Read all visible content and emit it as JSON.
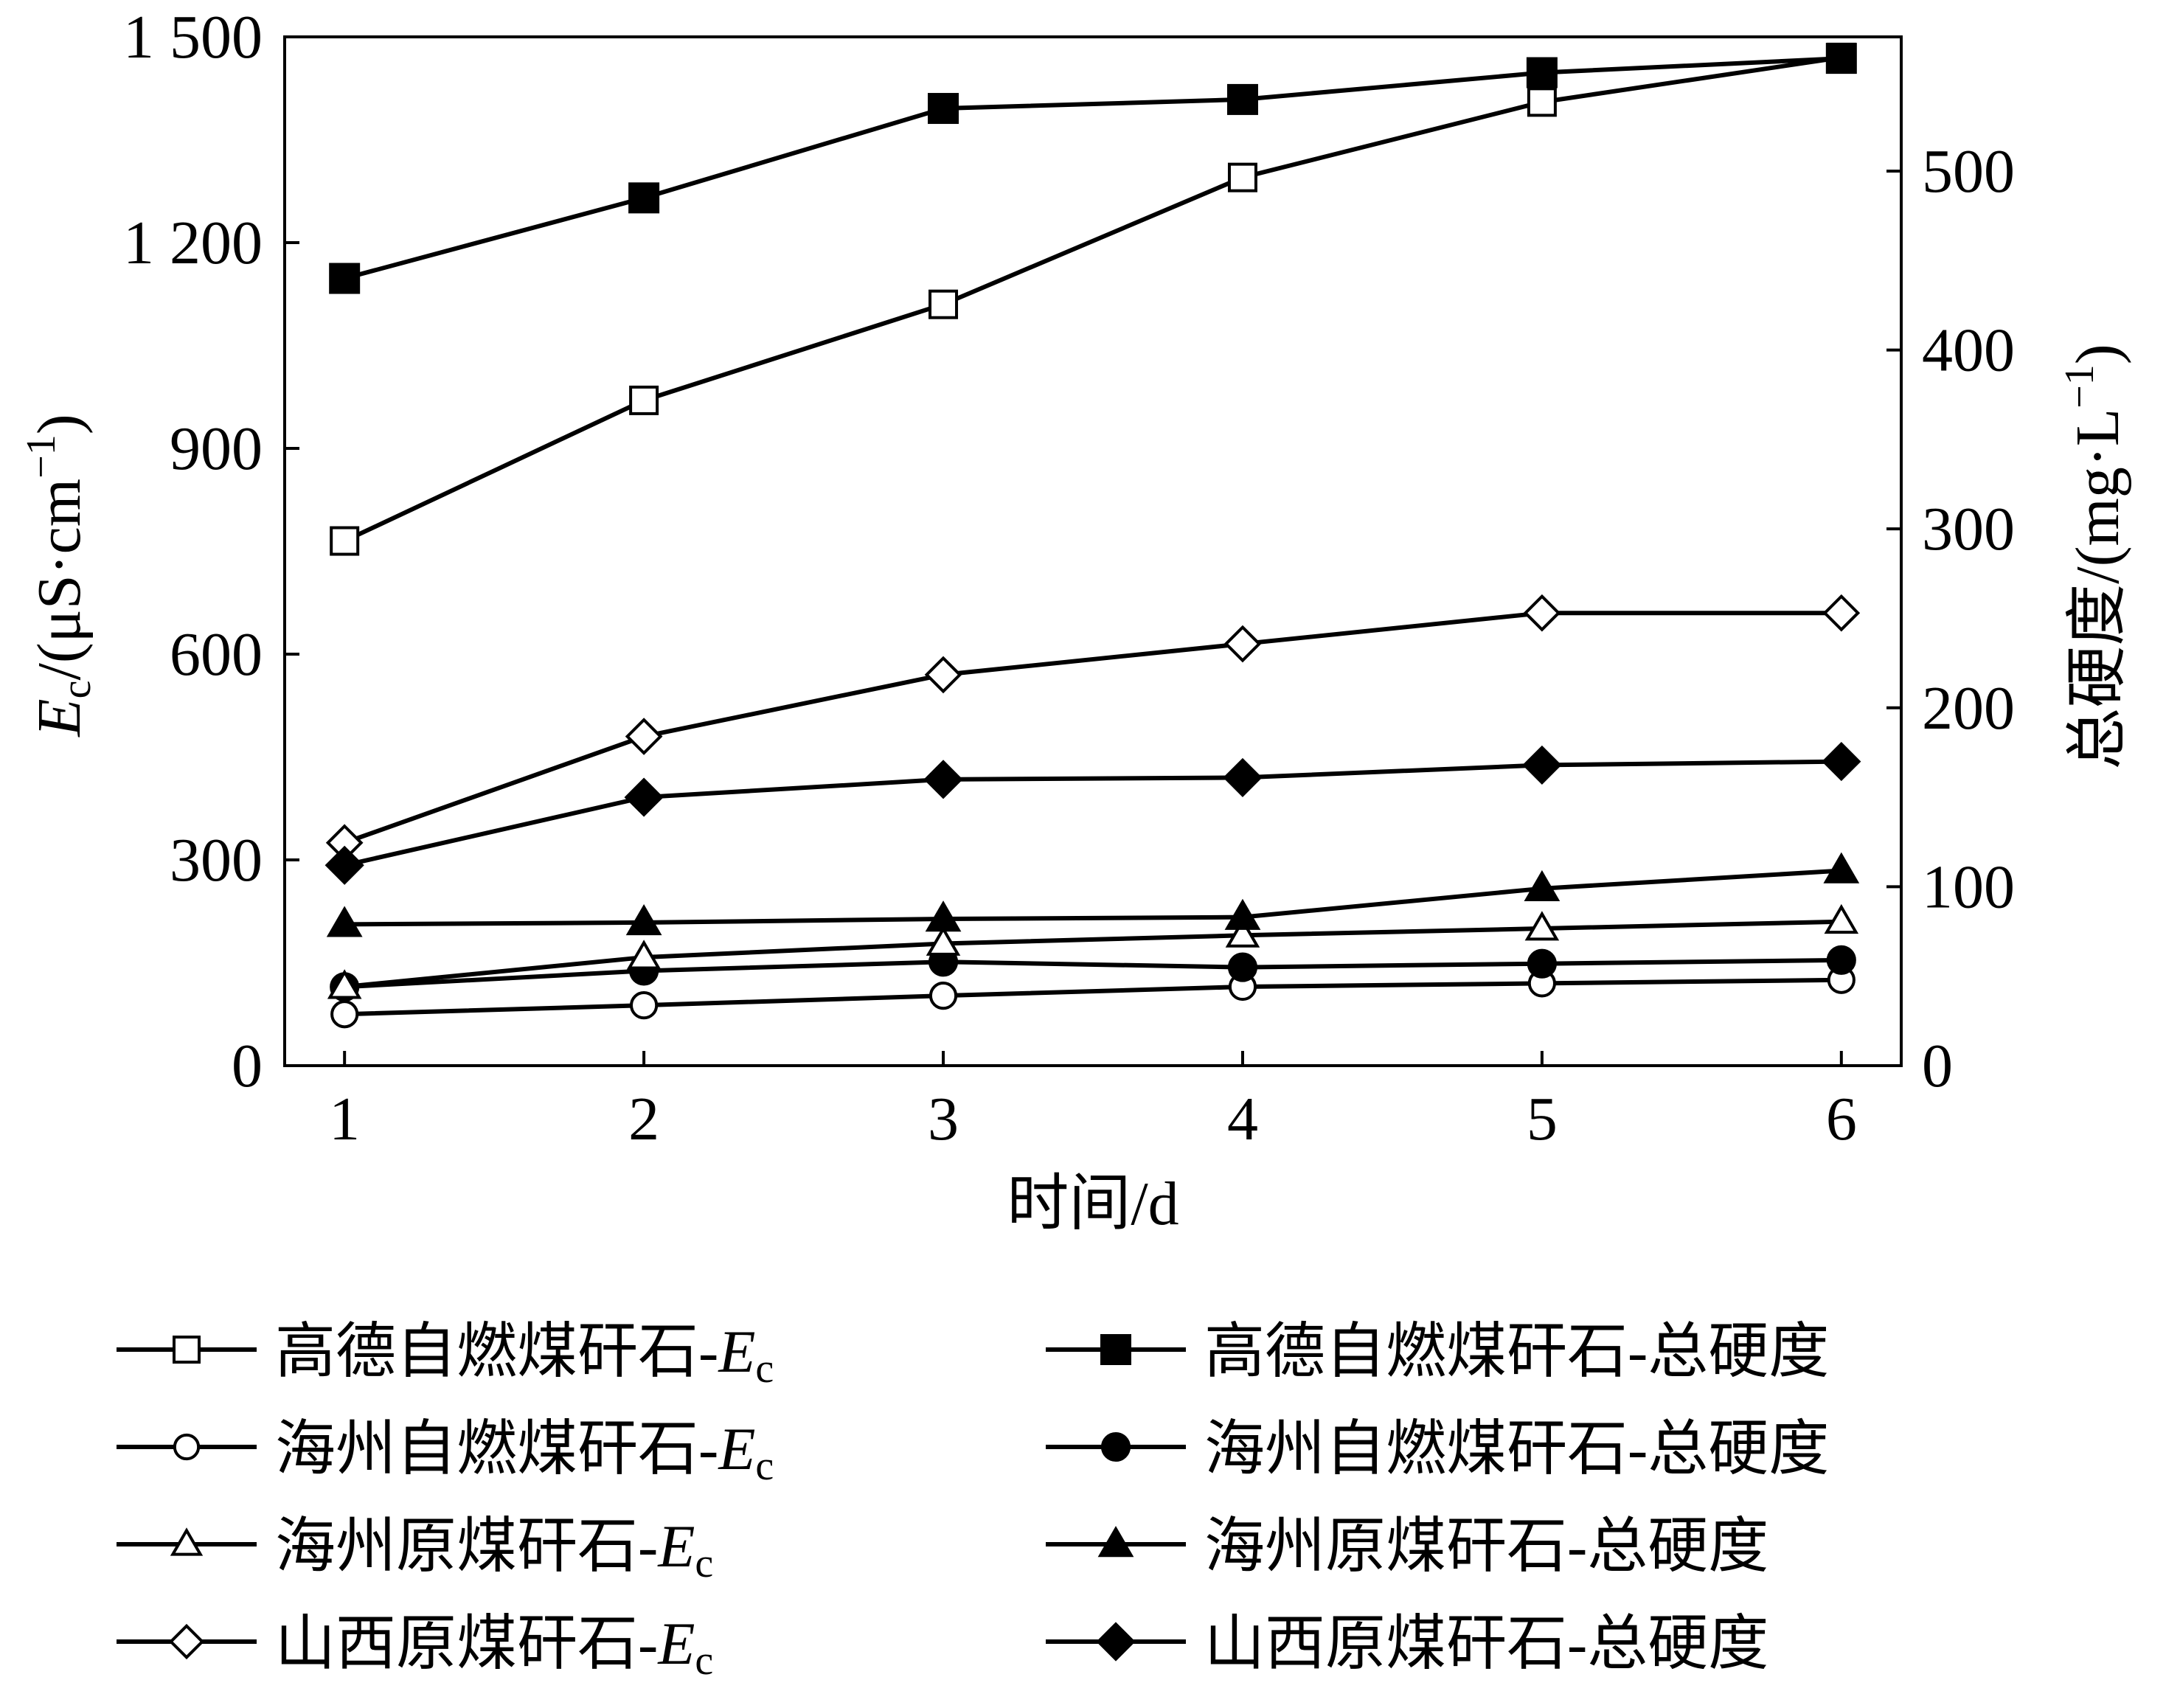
{
  "chart_data": {
    "type": "line",
    "x_axis": {
      "label": "时间/d",
      "ticks": [
        "1",
        "2",
        "3",
        "4",
        "5",
        "6"
      ],
      "range": [
        0.8,
        6.2
      ]
    },
    "y_axis_left": {
      "label_main": "E",
      "label_sub": "c",
      "label_rest": "/(μS·cm",
      "label_sup": "−1",
      "label_close": ")",
      "range": [
        0,
        1500
      ],
      "ticks": [
        {
          "value": 0,
          "label": "0"
        },
        {
          "value": 300,
          "label": "300"
        },
        {
          "value": 600,
          "label": "600"
        },
        {
          "value": 900,
          "label": "900"
        },
        {
          "value": 1200,
          "label": "1 200"
        },
        {
          "value": 1500,
          "label": "1 500"
        }
      ]
    },
    "y_axis_right": {
      "label_main": "总硬度/(mg·L",
      "label_sup": "−1",
      "label_close": ")",
      "range": [
        0,
        575
      ],
      "ticks": [
        {
          "value": 0,
          "label": "0"
        },
        {
          "value": 100,
          "label": "100"
        },
        {
          "value": 200,
          "label": "200"
        },
        {
          "value": 300,
          "label": "300"
        },
        {
          "value": 400,
          "label": "400"
        },
        {
          "value": 500,
          "label": "500"
        }
      ]
    },
    "x": [
      1,
      2,
      3,
      4,
      5,
      6
    ],
    "series": [
      {
        "name": "高德自燃煤矸石-",
        "name_italic": "E",
        "name_sub": "c",
        "axis": "left",
        "marker": "square",
        "filled": false,
        "values": [
          765,
          970,
          1110,
          1295,
          1405,
          1470
        ]
      },
      {
        "name": "高德自燃煤矸石-总硬度",
        "axis": "right",
        "marker": "square",
        "filled": true,
        "values": [
          440,
          485,
          535,
          540,
          555,
          563
        ]
      },
      {
        "name": "海州自燃煤矸石-",
        "name_italic": "E",
        "name_sub": "c",
        "axis": "left",
        "marker": "circle",
        "filled": false,
        "values": [
          75,
          88,
          102,
          115,
          120,
          125
        ]
      },
      {
        "name": "海州自燃煤矸石-总硬度",
        "axis": "right",
        "marker": "circle",
        "filled": true,
        "values": [
          44,
          53,
          58,
          55,
          57,
          59
        ]
      },
      {
        "name": "海州原煤矸石-",
        "name_italic": "E",
        "name_sub": "c",
        "axis": "left",
        "marker": "triangle",
        "filled": false,
        "values": [
          115,
          158,
          178,
          190,
          200,
          210
        ]
      },
      {
        "name": "海州原煤矸石-总硬度",
        "axis": "right",
        "marker": "triangle",
        "filled": true,
        "values": [
          79,
          80,
          82,
          83,
          99,
          109
        ]
      },
      {
        "name": "山西原煤矸石-",
        "name_italic": "E",
        "name_sub": "c",
        "axis": "left",
        "marker": "diamond",
        "filled": false,
        "values": [
          325,
          480,
          570,
          615,
          660,
          660
        ]
      },
      {
        "name": "山西原煤矸石-总硬度",
        "axis": "right",
        "marker": "diamond",
        "filled": true,
        "values": [
          112,
          150,
          160,
          161,
          168,
          170
        ]
      }
    ],
    "legend_position": "bottom",
    "grid": false
  }
}
